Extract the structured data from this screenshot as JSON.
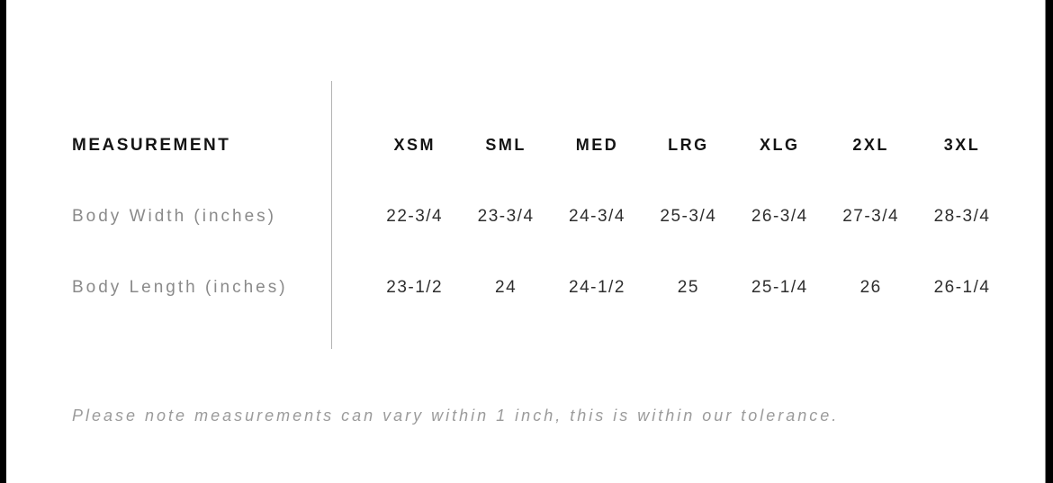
{
  "table": {
    "measurement_header": "MEASUREMENT",
    "size_headers": [
      "XSM",
      "SML",
      "MED",
      "LRG",
      "XLG",
      "2XL",
      "3XL"
    ],
    "rows": [
      {
        "label": "Body Width (inches)",
        "values": [
          "22-3/4",
          "23-3/4",
          "24-3/4",
          "25-3/4",
          "26-3/4",
          "27-3/4",
          "28-3/4"
        ]
      },
      {
        "label": "Body Length (inches)",
        "values": [
          "23-1/2",
          "24",
          "24-1/2",
          "25",
          "25-1/4",
          "26",
          "26-1/4"
        ]
      }
    ]
  },
  "footer": {
    "note": "Please note measurements can vary within 1 inch, this is within our tolerance."
  },
  "colors": {
    "header_text": "#141414",
    "row_label_text": "#8a8a8a",
    "value_text": "#2e2e2e",
    "note_text": "#9b9b9b",
    "divider": "#b3b3b3",
    "edge_bars": "#000000",
    "background": "#ffffff"
  }
}
